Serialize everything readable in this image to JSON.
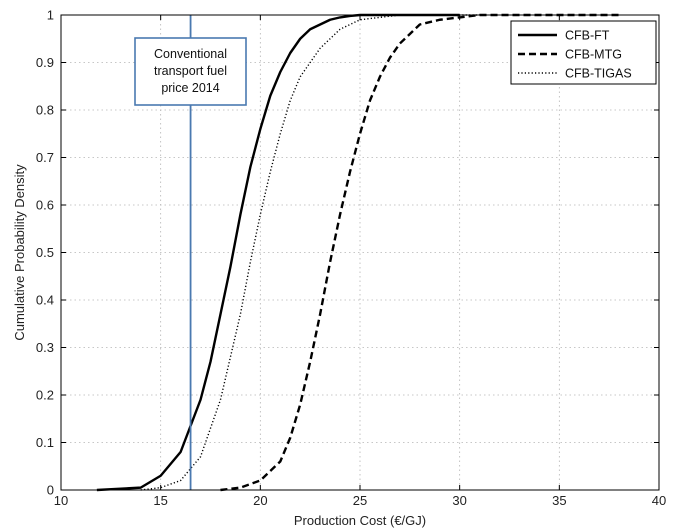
{
  "chart_data": {
    "type": "line",
    "xlabel": "Production Cost (€/GJ)",
    "ylabel": "Cumulative Probability  Density",
    "xlim": [
      10,
      40
    ],
    "ylim": [
      0,
      1
    ],
    "xticks": [
      10,
      15,
      20,
      25,
      30,
      35,
      40
    ],
    "yticks": [
      0,
      0.1,
      0.2,
      0.3,
      0.4,
      0.5,
      0.6,
      0.7,
      0.8,
      0.9,
      1
    ],
    "ytick_labels": [
      "0",
      "0.1",
      "0.2",
      "0.3",
      "0.4",
      "0.5",
      "0.6",
      "0.7",
      "0.8",
      "0.9",
      "1"
    ],
    "grid": true,
    "legend_position": "top-right",
    "series": [
      {
        "name": "CFB-FT",
        "style": "solid",
        "color": "#000000",
        "x": [
          11.8,
          14.0,
          15.0,
          16.0,
          17.0,
          17.5,
          18.0,
          18.5,
          19.0,
          19.5,
          20.0,
          20.5,
          21.0,
          21.5,
          22.0,
          22.5,
          23.0,
          23.5,
          24.0,
          24.5,
          25.0,
          26.0,
          28.0,
          30.0
        ],
        "y": [
          0,
          0.005,
          0.03,
          0.08,
          0.19,
          0.27,
          0.37,
          0.47,
          0.58,
          0.68,
          0.76,
          0.83,
          0.88,
          0.92,
          0.95,
          0.97,
          0.98,
          0.99,
          0.995,
          0.998,
          1,
          1,
          1,
          1
        ]
      },
      {
        "name": "CFB-MTG",
        "style": "dashed",
        "color": "#000000",
        "x": [
          18.0,
          19.0,
          20.0,
          21.0,
          21.5,
          22.0,
          22.5,
          23.0,
          23.5,
          24.0,
          24.5,
          25.0,
          25.5,
          26.0,
          26.5,
          27.0,
          28.0,
          29.0,
          30.0,
          31.0,
          33.0,
          35.0,
          38.0
        ],
        "y": [
          0,
          0.005,
          0.02,
          0.06,
          0.11,
          0.18,
          0.27,
          0.37,
          0.48,
          0.58,
          0.67,
          0.75,
          0.82,
          0.87,
          0.91,
          0.94,
          0.98,
          0.99,
          0.995,
          1,
          1,
          1,
          1
        ]
      },
      {
        "name": "CFB-TIGAS",
        "style": "dotted",
        "color": "#000000",
        "x": [
          14.0,
          15.0,
          16.0,
          17.0,
          18.0,
          19.0,
          19.5,
          20.0,
          20.5,
          21.0,
          21.5,
          22.0,
          23.0,
          24.0,
          25.0,
          26.0,
          27.0,
          29.0,
          31.0
        ],
        "y": [
          0,
          0.005,
          0.02,
          0.07,
          0.19,
          0.37,
          0.48,
          0.58,
          0.67,
          0.75,
          0.82,
          0.87,
          0.93,
          0.97,
          0.99,
          0.995,
          1,
          1,
          1
        ]
      }
    ],
    "annotations": [
      {
        "type": "vertical_line",
        "x": 16.5,
        "color": "#4a79b0",
        "lines": [
          "Conventional",
          "transport fuel",
          "price 2014"
        ]
      }
    ]
  }
}
